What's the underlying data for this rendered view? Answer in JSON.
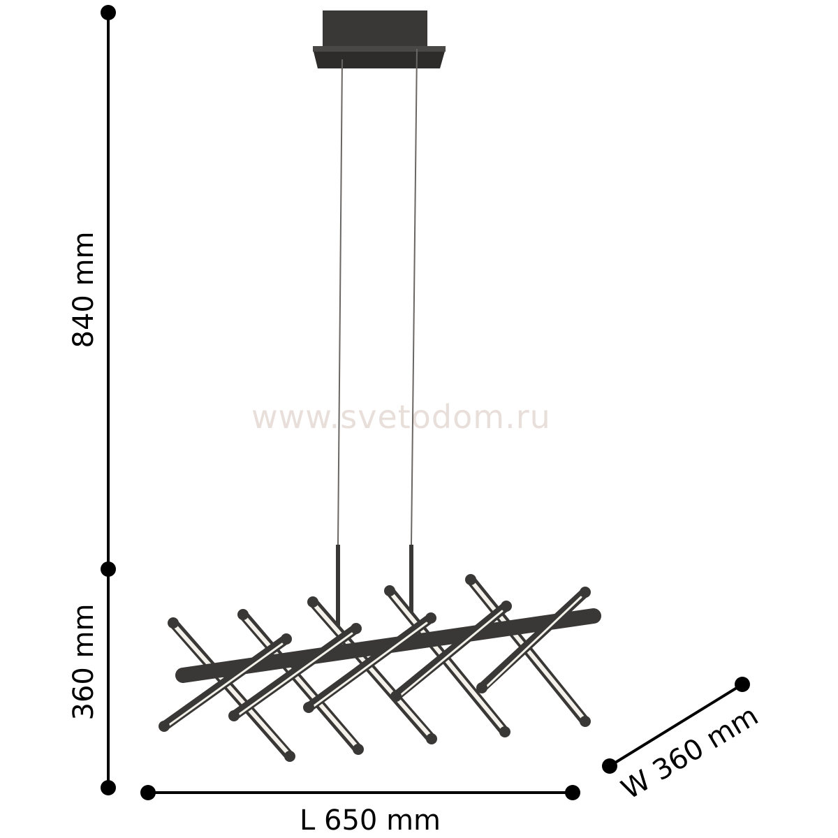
{
  "watermark": "www.svetodom.ru",
  "dimensions": {
    "total_height": "840 mm",
    "body_height": "360 mm",
    "length": "L 650 mm",
    "width": "W 360 mm"
  },
  "colors": {
    "lamp": "#3a3836",
    "light": "#f4f1ea",
    "dimension": "#000000",
    "watermark": "#e8dfdb"
  }
}
